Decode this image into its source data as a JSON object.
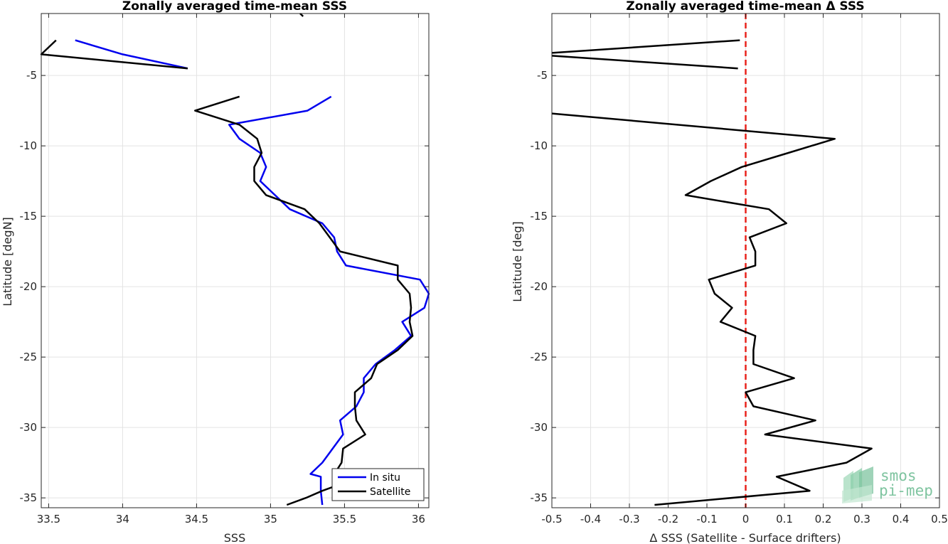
{
  "chart_data": [
    {
      "type": "line",
      "title": "Zonally averaged time-mean SSS",
      "xlabel": "SSS",
      "ylabel": "Latitude [degN]",
      "xlim": [
        33.45,
        36.07
      ],
      "ylim": [
        -35.7,
        -0.6
      ],
      "xticks": [
        33.5,
        34,
        34.5,
        35,
        35.5,
        36
      ],
      "xtick_labels": [
        "33.5",
        "34",
        "34.5",
        "35",
        "35.5",
        "36"
      ],
      "yticks": [
        -35,
        -30,
        -25,
        -20,
        -15,
        -10,
        -5
      ],
      "ytick_labels": [
        "-35",
        "-30",
        "-25",
        "-20",
        "-15",
        "-10",
        "-5"
      ],
      "grid": true,
      "legend": {
        "placement": "bottom-right",
        "entries": [
          "In situ",
          "Satellite"
        ]
      },
      "series": [
        {
          "name": "In situ",
          "color": "#0000ee",
          "segments": [
            [
              [
                33.68,
                -2.5
              ],
              [
                34.0,
                -3.5
              ],
              [
                34.44,
                -4.5
              ]
            ],
            [
              [
                35.41,
                -6.5
              ],
              [
                35.25,
                -7.5
              ],
              [
                34.72,
                -8.5
              ],
              [
                34.79,
                -9.5
              ],
              [
                34.93,
                -10.5
              ],
              [
                34.97,
                -11.5
              ],
              [
                34.93,
                -12.5
              ],
              [
                35.03,
                -13.5
              ],
              [
                35.13,
                -14.5
              ],
              [
                35.35,
                -15.5
              ],
              [
                35.43,
                -16.5
              ],
              [
                35.45,
                -17.5
              ],
              [
                35.51,
                -18.5
              ],
              [
                36.01,
                -19.5
              ],
              [
                36.07,
                -20.5
              ],
              [
                36.04,
                -21.5
              ],
              [
                35.89,
                -22.5
              ],
              [
                35.95,
                -23.5
              ],
              [
                35.84,
                -24.5
              ],
              [
                35.71,
                -25.5
              ],
              [
                35.63,
                -26.5
              ],
              [
                35.63,
                -27.5
              ],
              [
                35.58,
                -28.5
              ],
              [
                35.47,
                -29.5
              ],
              [
                35.49,
                -30.5
              ],
              [
                35.42,
                -31.5
              ],
              [
                35.35,
                -32.5
              ],
              [
                35.27,
                -33.3
              ],
              [
                35.34,
                -33.5
              ],
              [
                35.34,
                -34.5
              ],
              [
                35.35,
                -35.5
              ]
            ]
          ]
        },
        {
          "name": "Satellite",
          "color": "#000000",
          "segments": [
            [
              [
                35.2,
                -0.6
              ],
              [
                35.22,
                -0.8
              ]
            ],
            [
              [
                33.55,
                -2.5
              ],
              [
                33.45,
                -3.5
              ],
              [
                34.44,
                -4.5
              ]
            ],
            [
              [
                34.79,
                -6.5
              ],
              [
                34.49,
                -7.5
              ],
              [
                34.79,
                -8.5
              ],
              [
                34.91,
                -9.5
              ],
              [
                34.94,
                -10.5
              ],
              [
                34.89,
                -11.5
              ],
              [
                34.89,
                -12.5
              ],
              [
                34.97,
                -13.5
              ],
              [
                35.23,
                -14.5
              ],
              [
                35.33,
                -15.5
              ],
              [
                35.4,
                -16.5
              ],
              [
                35.47,
                -17.5
              ],
              [
                35.86,
                -18.5
              ],
              [
                35.86,
                -19.5
              ],
              [
                35.94,
                -20.5
              ],
              [
                35.95,
                -21.5
              ],
              [
                35.94,
                -22.5
              ],
              [
                35.96,
                -23.5
              ],
              [
                35.86,
                -24.5
              ],
              [
                35.72,
                -25.5
              ],
              [
                35.68,
                -26.5
              ],
              [
                35.57,
                -27.5
              ],
              [
                35.57,
                -28.5
              ],
              [
                35.58,
                -29.5
              ],
              [
                35.64,
                -30.5
              ],
              [
                35.49,
                -31.5
              ],
              [
                35.48,
                -32.5
              ],
              [
                35.45,
                -33.0
              ]
            ],
            [
              [
                35.48,
                -34.0
              ],
              [
                35.35,
                -34.5
              ],
              [
                35.24,
                -35.0
              ],
              [
                35.11,
                -35.5
              ]
            ]
          ]
        }
      ]
    },
    {
      "type": "line",
      "title": "Zonally averaged time-mean Δ SSS",
      "xlabel": "Δ SSS (Satellite - Surface drifters)",
      "ylabel": "Latitude [deg]",
      "xlim": [
        -0.5,
        0.5
      ],
      "ylim": [
        -35.7,
        -0.6
      ],
      "xticks": [
        -0.5,
        -0.4,
        -0.3,
        -0.2,
        -0.1,
        0,
        0.1,
        0.2,
        0.3,
        0.4,
        0.5
      ],
      "xtick_labels": [
        "-0.5",
        "-0.4",
        "-0.3",
        "-0.2",
        "-0.1",
        "0",
        "0.1",
        "0.2",
        "0.3",
        "0.4",
        "0.5"
      ],
      "yticks": [
        -35,
        -30,
        -25,
        -20,
        -15,
        -10,
        -5
      ],
      "ytick_labels": [
        "-35",
        "-30",
        "-25",
        "-20",
        "-15",
        "-10",
        "-5"
      ],
      "grid": true,
      "reference_line": {
        "x": 0,
        "color": "#e8221b",
        "style": "dashed"
      },
      "series": [
        {
          "color": "#000000",
          "segments": [
            [
              [
                -0.015,
                -2.5
              ],
              [
                -0.5,
                -3.4
              ]
            ],
            [
              [
                -0.5,
                -3.6
              ],
              [
                -0.02,
                -4.5
              ]
            ],
            [
              [
                -0.5,
                -7.7
              ],
              [
                0.23,
                -9.5
              ],
              [
                0.11,
                -10.5
              ],
              [
                -0.01,
                -11.5
              ],
              [
                -0.09,
                -12.5
              ],
              [
                -0.155,
                -13.5
              ],
              [
                0.06,
                -14.5
              ],
              [
                0.105,
                -15.5
              ],
              [
                0.01,
                -16.5
              ],
              [
                0.025,
                -17.5
              ],
              [
                0.025,
                -18.5
              ],
              [
                -0.095,
                -19.5
              ],
              [
                -0.08,
                -20.5
              ],
              [
                -0.035,
                -21.5
              ],
              [
                -0.065,
                -22.5
              ],
              [
                0.025,
                -23.5
              ],
              [
                0.02,
                -24.5
              ],
              [
                0.02,
                -25.5
              ],
              [
                0.125,
                -26.5
              ],
              [
                0.0,
                -27.5
              ],
              [
                0.02,
                -28.5
              ],
              [
                0.18,
                -29.5
              ],
              [
                0.05,
                -30.5
              ],
              [
                0.325,
                -31.5
              ],
              [
                0.26,
                -32.5
              ],
              [
                0.08,
                -33.5
              ],
              [
                0.165,
                -34.5
              ],
              [
                -0.235,
                -35.5
              ]
            ]
          ]
        }
      ]
    }
  ],
  "logo": {
    "line1": "smos",
    "line2": "pi-mep"
  }
}
